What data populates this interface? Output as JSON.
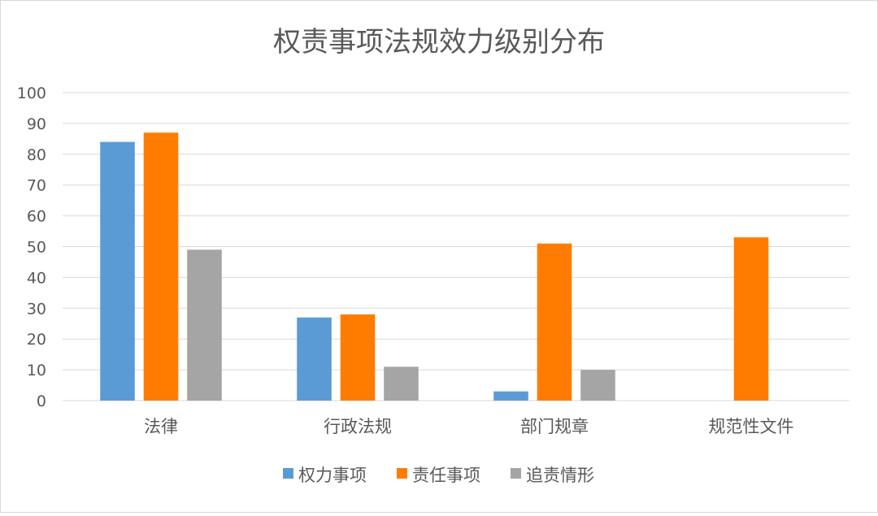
{
  "chart_data": {
    "type": "bar",
    "title": "权责事项法规效力级别分布",
    "categories": [
      "法律",
      "行政法规",
      "部门规章",
      "规范性文件"
    ],
    "series": [
      {
        "name": "权力事项",
        "color": "#5b9bd5",
        "values": [
          84,
          27,
          3,
          0
        ]
      },
      {
        "name": "责任事项",
        "color": "#ff7c00",
        "values": [
          87,
          28,
          51,
          53
        ]
      },
      {
        "name": "追责情形",
        "color": "#a5a5a5",
        "values": [
          49,
          11,
          10,
          0
        ]
      }
    ],
    "ylim": [
      0,
      100
    ],
    "yticks": [
      "0",
      "10",
      "20",
      "30",
      "40",
      "50",
      "60",
      "70",
      "80",
      "90",
      "100"
    ],
    "grid": true,
    "legend_position": "bottom"
  }
}
